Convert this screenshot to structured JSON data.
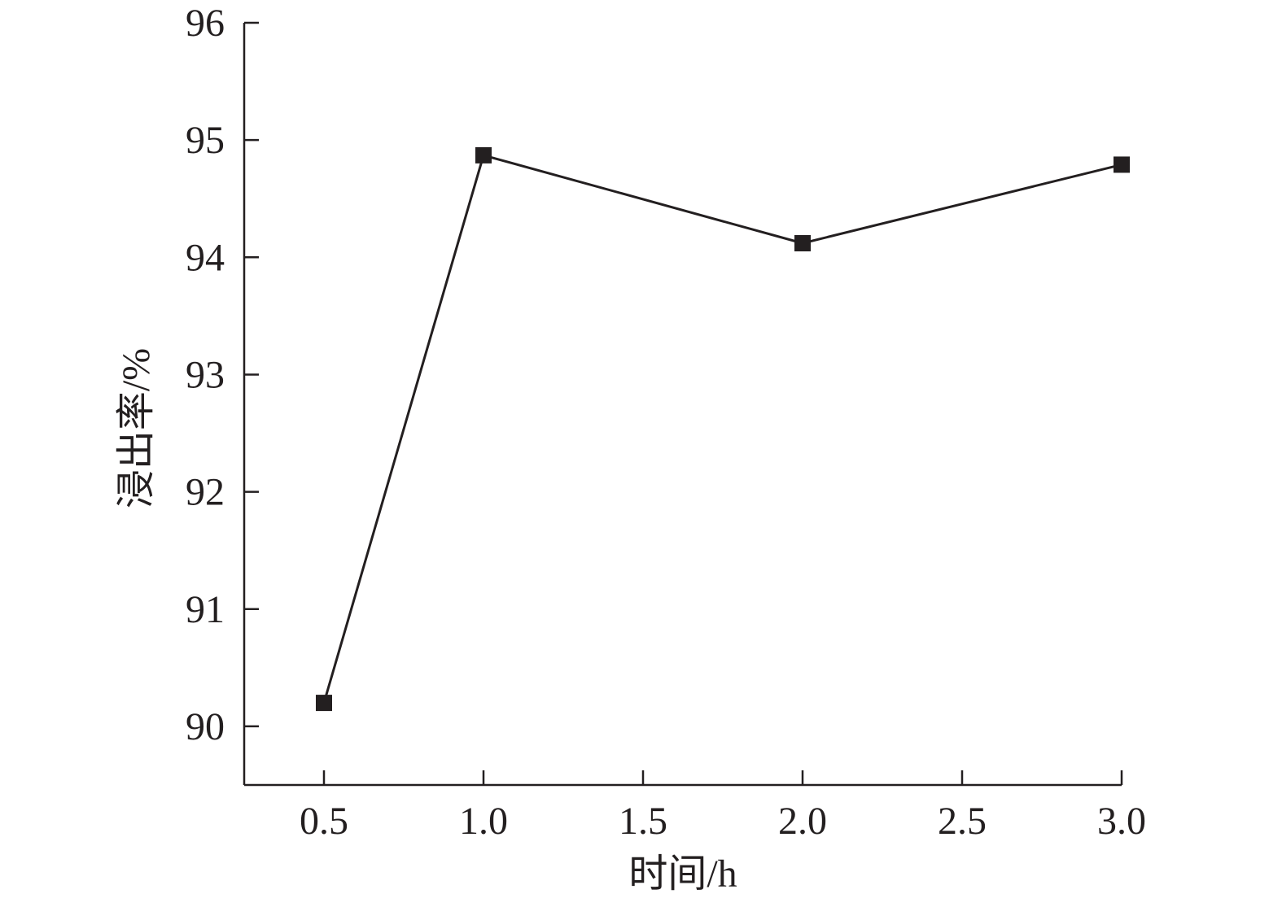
{
  "chart_data": {
    "type": "line",
    "title": "",
    "xlabel": "时间/h",
    "ylabel": "浸出率/%",
    "x_ticks": [
      "0.5",
      "1.0",
      "1.5",
      "2.0",
      "2.5",
      "3.0"
    ],
    "y_ticks": [
      "90",
      "91",
      "92",
      "93",
      "94",
      "95",
      "96"
    ],
    "xlim": [
      0.25,
      3.0
    ],
    "ylim": [
      89.5,
      96
    ],
    "grid": false,
    "series": [
      {
        "marker": "square",
        "color": "#231f20",
        "x": [
          0.5,
          1.0,
          2.0,
          3.0
        ],
        "y": [
          90.2,
          94.87,
          94.12,
          94.79
        ]
      }
    ]
  }
}
